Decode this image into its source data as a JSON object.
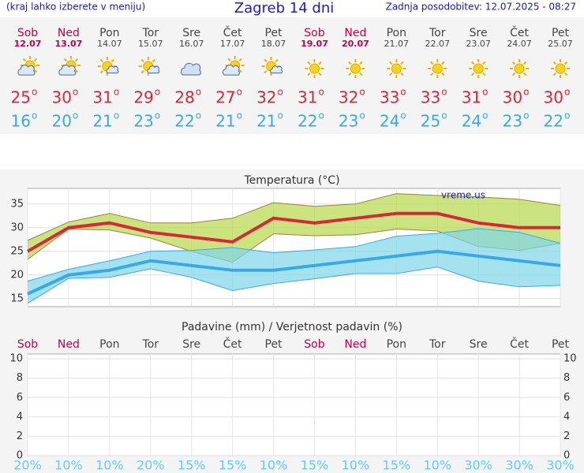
{
  "header": {
    "note": "(kraj lahko izberete v meniju)",
    "title": "Zagreb 14 dni",
    "updated": "Zadnja posodobitev: 12.07.2025 - 08:27"
  },
  "forecast": {
    "degree": "o",
    "days": [
      {
        "day": "Sob",
        "date": "12.07",
        "color": "#c0004a"
      },
      {
        "day": "Ned",
        "date": "13.07",
        "color": "#c0004a"
      },
      {
        "day": "Pon",
        "date": "14.07",
        "color": "#444444"
      },
      {
        "day": "Tor",
        "date": "15.07",
        "color": "#444444"
      },
      {
        "day": "Sre",
        "date": "16.07",
        "color": "#444444"
      },
      {
        "day": "Čet",
        "date": "17.07",
        "color": "#444444"
      },
      {
        "day": "Pet",
        "date": "18.07",
        "color": "#444444"
      },
      {
        "day": "Sob",
        "date": "19.07",
        "color": "#c0004a"
      },
      {
        "day": "Ned",
        "date": "20.07",
        "color": "#c0004a"
      },
      {
        "day": "Pon",
        "date": "21.07",
        "color": "#444444"
      },
      {
        "day": "Tor",
        "date": "22.07",
        "color": "#444444"
      },
      {
        "day": "Sre",
        "date": "23.07",
        "color": "#444444"
      },
      {
        "day": "Čet",
        "date": "24.07",
        "color": "#444444"
      },
      {
        "day": "Pet",
        "date": "25.07",
        "color": "#444444"
      }
    ]
  },
  "chart_data": [
    {
      "type": "line",
      "title": "Temperatura (°C)",
      "watermark": "vreme.us",
      "ylim": [
        13.3,
        38.3
      ],
      "yticks": [
        15,
        20,
        25,
        30,
        35
      ],
      "grid": true,
      "series": [
        {
          "color": "#d62839",
          "band_color": "#b5d94a",
          "values": [
            25,
            30,
            31,
            29,
            28,
            27,
            32,
            31,
            32,
            33,
            33,
            31,
            30,
            30
          ],
          "band_upper": [
            27.3,
            31.2,
            33,
            31,
            31,
            32,
            35.3,
            34.5,
            35,
            37.2,
            36.8,
            36.5,
            36,
            34.7
          ],
          "band_lower": [
            23.3,
            29.7,
            29.5,
            27.8,
            25,
            22.7,
            28.7,
            28.3,
            28.5,
            29.7,
            29.3,
            26,
            25.2,
            26.7
          ]
        },
        {
          "color": "#3aa8e8",
          "band_color": "#7fd6e8",
          "values": [
            16,
            20,
            21,
            23,
            22,
            21,
            21,
            22,
            23,
            24,
            25,
            24,
            23,
            22
          ],
          "band_upper": [
            18.7,
            21.2,
            23,
            25,
            25.2,
            25.8,
            24.7,
            25.3,
            26,
            28.2,
            28.8,
            29.8,
            29,
            26.7
          ],
          "band_lower": [
            14,
            19.3,
            19.5,
            21.3,
            19.5,
            16.7,
            18.2,
            19.2,
            20.3,
            20.3,
            21.7,
            18.7,
            17.5,
            17.8
          ]
        }
      ]
    },
    {
      "type": "precipitation",
      "title": "Padavine (mm) / Verjetnost padavin (%)",
      "ylim": [
        0,
        10.5
      ],
      "yticks": [
        0,
        2,
        4,
        6,
        8,
        10
      ],
      "grid": true,
      "color": "#66ccee",
      "values": [
        20,
        10,
        10,
        20,
        15,
        15,
        10,
        15,
        10,
        15,
        10,
        30,
        30,
        30
      ],
      "value_labels": [
        "20%",
        "10%",
        "10%",
        "20%",
        "15%",
        "15%",
        "10%",
        "15%",
        "10%",
        "15%",
        "10%",
        "30%",
        "30%",
        "30%"
      ]
    }
  ]
}
